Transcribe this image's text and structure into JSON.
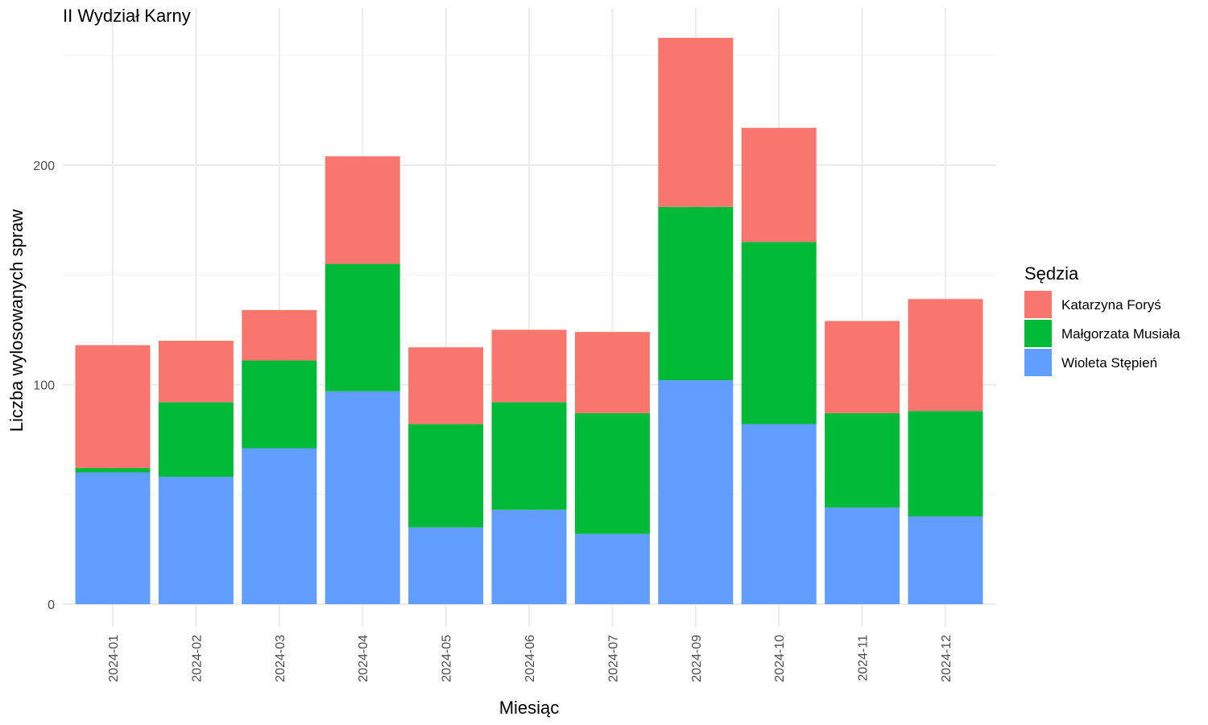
{
  "chart_data": {
    "type": "bar",
    "stacked": true,
    "title": "II Wydział Karny",
    "xlabel": "Miesiąc",
    "ylabel": "Liczba wylosowanych spraw",
    "ylim": [
      0,
      270
    ],
    "yticks": [
      0,
      100,
      200
    ],
    "grid": true,
    "legend": {
      "title": "Sędzia",
      "placement": "right"
    },
    "categories": [
      "2024-01",
      "2024-02",
      "2024-03",
      "2024-04",
      "2024-05",
      "2024-06",
      "2024-07",
      "2024-09",
      "2024-10",
      "2024-11",
      "2024-12"
    ],
    "series": [
      {
        "name": "Wioleta Stępień",
        "color": "#619CFF",
        "values": [
          60,
          58,
          71,
          97,
          35,
          43,
          32,
          102,
          82,
          44,
          40
        ]
      },
      {
        "name": "Małgorzata Musiała",
        "color": "#00BA38",
        "values": [
          2,
          34,
          40,
          58,
          47,
          49,
          55,
          79,
          83,
          43,
          48
        ]
      },
      {
        "name": "Katarzyna Foryś",
        "color": "#F8766D",
        "values": [
          56,
          28,
          23,
          49,
          35,
          33,
          37,
          77,
          52,
          42,
          51
        ]
      }
    ],
    "legend_order": [
      "Katarzyna Foryś",
      "Małgorzata Musiała",
      "Wioleta Stępień"
    ]
  }
}
